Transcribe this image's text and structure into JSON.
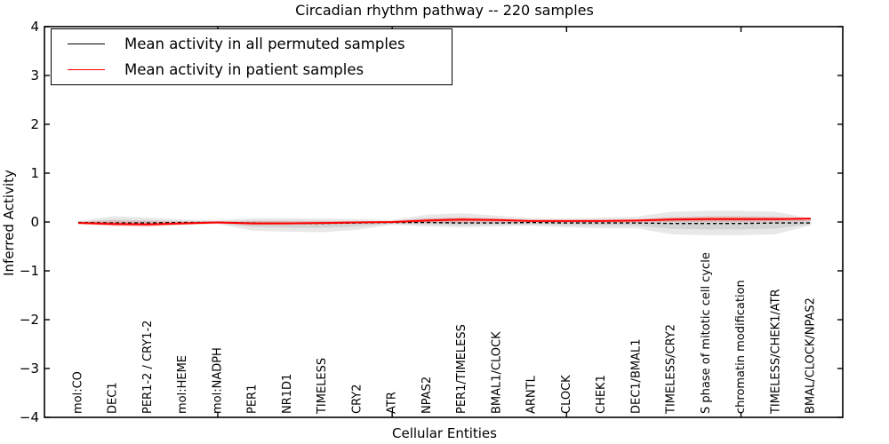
{
  "chart_data": {
    "type": "line",
    "title": "Circadian rhythm pathway -- 220 samples",
    "xlabel": "Cellular Entities",
    "ylabel": "Inferred Activity",
    "ylim": [
      -4,
      4
    ],
    "yticks": [
      4,
      3,
      2,
      1,
      0,
      -1,
      -2,
      -3,
      -4
    ],
    "ytick_labels": [
      "4",
      "3",
      "2",
      "1",
      "0",
      "−1",
      "−2",
      "−3",
      "−4"
    ],
    "xticks_at_indices": [
      4,
      9,
      14,
      19
    ],
    "grid": false,
    "legend_position": "upper left",
    "categories": [
      "mol:CO",
      "DEC1",
      "PER1-2 / CRY1-2",
      "mol:HEME",
      "mol:NADPH",
      "PER1",
      "NR1D1",
      "TIMELESS",
      "CRY2",
      "ATR",
      "NPAS2",
      "PER1/TIMELESS",
      "BMAL1/CLOCK",
      "ARNTL",
      "CLOCK",
      "CHEK1",
      "DEC1/BMAL1",
      "TIMELESS/CRY2",
      "S phase of mitotic cell cycle",
      "chromatin modification",
      "TIMELESS/CHEK1/ATR",
      "BMAL/CLOCK/NPAS2"
    ],
    "series": [
      {
        "name": "Mean activity in all permuted samples",
        "color": "#000000",
        "style": "dashed",
        "values": [
          -0.01,
          -0.02,
          -0.02,
          -0.01,
          -0.01,
          -0.02,
          -0.03,
          -0.03,
          -0.02,
          -0.01,
          -0.01,
          -0.02,
          -0.02,
          -0.01,
          -0.02,
          -0.02,
          -0.02,
          -0.03,
          -0.03,
          -0.03,
          -0.02,
          -0.02
        ]
      },
      {
        "name": "Mean activity in patient samples",
        "color": "#ff0000",
        "style": "solid",
        "values": [
          -0.02,
          -0.04,
          -0.05,
          -0.03,
          -0.01,
          -0.03,
          -0.03,
          -0.02,
          -0.01,
          0.0,
          0.03,
          0.05,
          0.04,
          0.02,
          0.02,
          0.02,
          0.03,
          0.05,
          0.06,
          0.06,
          0.06,
          0.07
        ]
      }
    ],
    "bands": [
      {
        "name": "permuted-samples-range",
        "color": "#000000",
        "opacity": 0.09,
        "upper": [
          0.02,
          0.12,
          0.09,
          0.05,
          0.04,
          0.08,
          0.08,
          0.07,
          0.06,
          0.04,
          0.15,
          0.18,
          0.13,
          0.08,
          0.07,
          0.09,
          0.11,
          0.21,
          0.23,
          0.23,
          0.21,
          0.07
        ],
        "lower": [
          -0.02,
          -0.07,
          -0.08,
          -0.06,
          -0.04,
          -0.18,
          -0.2,
          -0.21,
          -0.16,
          -0.06,
          -0.09,
          -0.11,
          -0.09,
          -0.08,
          -0.11,
          -0.13,
          -0.13,
          -0.25,
          -0.27,
          -0.27,
          -0.25,
          -0.07
        ]
      },
      {
        "name": "patient-samples-range",
        "color": "#ff0000",
        "opacity": 0.13,
        "upper": [
          0.01,
          0.03,
          0.02,
          0.01,
          0.01,
          0.02,
          0.02,
          0.02,
          0.02,
          0.02,
          0.08,
          0.1,
          0.08,
          0.04,
          0.04,
          0.05,
          0.06,
          0.1,
          0.12,
          0.12,
          0.11,
          0.08
        ],
        "lower": [
          -0.04,
          -0.09,
          -0.1,
          -0.06,
          -0.03,
          -0.06,
          -0.05,
          -0.04,
          -0.03,
          -0.02,
          -0.02,
          -0.02,
          -0.01,
          -0.01,
          -0.01,
          -0.01,
          -0.01,
          0.0,
          0.0,
          0.0,
          0.01,
          0.02
        ]
      }
    ]
  }
}
